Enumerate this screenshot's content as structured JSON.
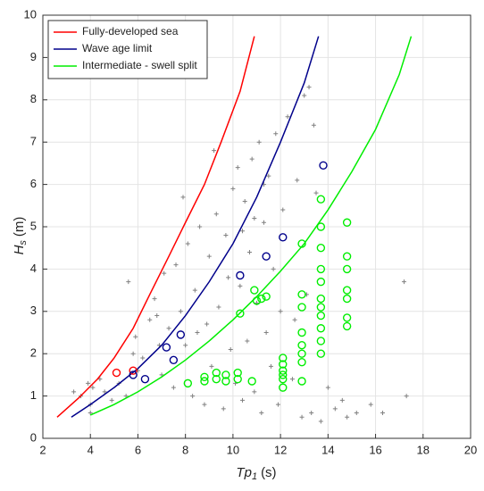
{
  "chart_data": {
    "type": "scatter",
    "xlabel": {
      "main": "Tp",
      "sub": "1",
      "unit": "(s)"
    },
    "ylabel": {
      "main": "H",
      "sub": "s",
      "unit": "(m)"
    },
    "xlim": [
      2,
      20
    ],
    "ylim": [
      0,
      10
    ],
    "xticks": [
      2,
      4,
      6,
      8,
      10,
      12,
      14,
      16,
      18,
      20
    ],
    "yticks": [
      0,
      1,
      2,
      3,
      4,
      5,
      6,
      7,
      8,
      9,
      10
    ],
    "grid": true,
    "legend": "upper left",
    "series": [
      {
        "name": "Fully-developed sea",
        "color": "#ff0000",
        "mode": "line",
        "x": [
          2.6,
          3.5,
          4.3,
          5,
          5.8,
          6.5,
          7.3,
          8,
          8.8,
          9.5,
          10.3,
          10.9
        ],
        "values": [
          0.5,
          0.95,
          1.4,
          1.9,
          2.6,
          3.4,
          4.3,
          5.1,
          6.0,
          7.0,
          8.2,
          9.5
        ]
      },
      {
        "name": "Wave age limit",
        "color": "#00008b",
        "mode": "line",
        "x": [
          3.2,
          4,
          5,
          6,
          7,
          8,
          9,
          10,
          11,
          12,
          13,
          13.6
        ],
        "values": [
          0.5,
          0.8,
          1.2,
          1.65,
          2.2,
          2.9,
          3.7,
          4.6,
          5.7,
          7.0,
          8.4,
          9.5
        ]
      },
      {
        "name": "Intermediate - swell split",
        "color": "#00ee00",
        "mode": "line",
        "x": [
          4,
          5,
          6,
          7,
          8,
          9,
          10,
          11,
          12,
          13,
          14,
          15,
          16,
          17,
          17.5
        ],
        "values": [
          0.55,
          0.8,
          1.1,
          1.45,
          1.85,
          2.3,
          2.8,
          3.35,
          3.95,
          4.6,
          5.4,
          6.3,
          7.3,
          8.6,
          9.5
        ]
      },
      {
        "color": "#808080",
        "mode": "plus",
        "x": [
          3.3,
          3.6,
          3.9,
          4.0,
          4.1,
          4.0,
          4.4,
          4.6,
          4.9,
          5.2,
          5.5,
          5.6,
          5.9,
          6.0,
          6.2,
          6.5,
          6.7,
          6.9,
          7.0,
          7.1,
          7.3,
          7.5,
          7.6,
          7.8,
          8.0,
          8.1,
          8.3,
          8.4,
          8.6,
          8.8,
          8.9,
          9.0,
          9.1,
          9.3,
          9.4,
          9.6,
          9.7,
          9.9,
          10.0,
          10.1,
          10.2,
          10.3,
          10.4,
          10.5,
          10.6,
          10.7,
          10.8,
          10.9,
          11.0,
          11.1,
          11.2,
          11.3,
          11.4,
          11.5,
          11.6,
          11.7,
          11.8,
          11.9,
          12.0,
          12.1,
          12.3,
          12.5,
          12.7,
          12.9,
          13.0,
          13.1,
          13.2,
          13.3,
          13.5,
          13.7,
          14.0,
          14.3,
          14.6,
          14.8,
          15.2,
          15.8,
          16.3,
          17.2,
          17.3,
          5.8,
          6.8,
          8.5,
          9.8,
          10.4,
          11.3,
          12.6,
          13.4,
          7.9,
          9.2,
          10.9
        ],
        "values": [
          1.1,
          1.0,
          1.3,
          0.8,
          1.2,
          0.6,
          1.4,
          1.1,
          0.9,
          1.3,
          1.0,
          3.7,
          2.4,
          1.6,
          1.9,
          2.8,
          3.3,
          2.2,
          1.5,
          3.9,
          2.6,
          1.2,
          4.1,
          3.0,
          2.2,
          4.6,
          1.0,
          3.5,
          5.0,
          0.8,
          2.7,
          4.3,
          1.7,
          5.3,
          3.1,
          0.7,
          4.8,
          2.1,
          5.9,
          1.3,
          6.4,
          3.6,
          0.9,
          5.6,
          2.3,
          4.4,
          6.6,
          1.1,
          3.2,
          7.0,
          0.6,
          5.1,
          2.5,
          6.2,
          1.7,
          4.0,
          7.2,
          0.8,
          3.0,
          5.4,
          7.6,
          1.4,
          6.1,
          0.5,
          8.1,
          3.4,
          8.3,
          0.6,
          5.8,
          0.4,
          1.2,
          0.7,
          0.9,
          0.5,
          0.6,
          0.8,
          0.6,
          3.7,
          1.0,
          2.0,
          2.9,
          2.5,
          3.8,
          4.9,
          6.0,
          2.8,
          7.4,
          5.7,
          6.8,
          5.2
        ]
      },
      {
        "color": "#ff0000",
        "mode": "circle",
        "x": [
          5.1,
          5.8
        ],
        "values": [
          1.55,
          1.6
        ]
      },
      {
        "color": "#00008b",
        "mode": "circle",
        "x": [
          5.8,
          6.3,
          7.2,
          7.5,
          7.8,
          10.3,
          11.4,
          12.1,
          13.8
        ],
        "values": [
          1.5,
          1.4,
          2.15,
          1.85,
          2.45,
          3.85,
          4.3,
          4.75,
          6.45
        ]
      },
      {
        "color": "#00ee00",
        "mode": "circle",
        "x": [
          8.1,
          8.8,
          8.8,
          9.3,
          9.3,
          9.7,
          9.7,
          10.2,
          10.2,
          10.3,
          10.8,
          10.9,
          11.0,
          11.2,
          11.4,
          12.1,
          12.1,
          12.1,
          12.1,
          12.1,
          12.1,
          12.9,
          12.9,
          12.9,
          12.9,
          12.9,
          12.9,
          12.9,
          12.9,
          13.7,
          13.7,
          13.7,
          13.7,
          13.7,
          13.7,
          13.7,
          13.7,
          13.7,
          13.7,
          13.7,
          14.8,
          14.8,
          14.8,
          14.8,
          14.8,
          14.8,
          14.8
        ],
        "values": [
          1.3,
          1.35,
          1.45,
          1.4,
          1.55,
          1.35,
          1.5,
          1.4,
          1.55,
          2.95,
          1.35,
          3.5,
          3.25,
          3.3,
          3.35,
          1.2,
          1.4,
          1.6,
          1.75,
          1.9,
          1.5,
          1.35,
          1.8,
          2.0,
          2.2,
          2.5,
          3.1,
          3.4,
          4.6,
          2.0,
          2.3,
          2.6,
          2.9,
          3.1,
          3.3,
          3.7,
          4.0,
          4.5,
          5.0,
          5.65,
          2.65,
          2.85,
          3.3,
          3.5,
          4.0,
          4.3,
          5.1
        ]
      }
    ]
  }
}
